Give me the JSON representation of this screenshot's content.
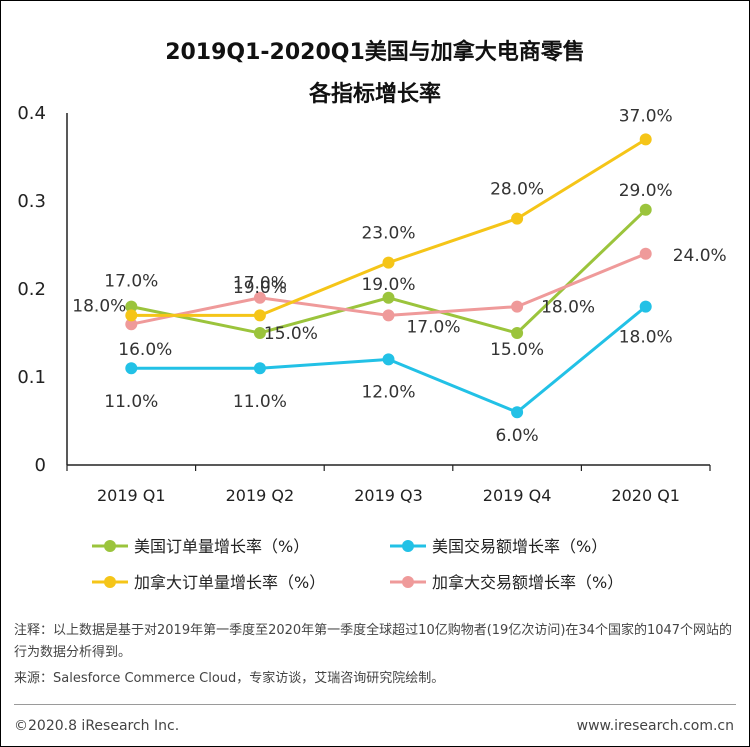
{
  "title": "2019Q1-2020Q1美国与加拿大电商零售",
  "subtitle": "各指标增长率",
  "chart_data": {
    "type": "line",
    "categories": [
      "2019 Q1",
      "2019 Q2",
      "2019 Q3",
      "2019 Q4",
      "2020 Q1"
    ],
    "ylim": [
      0,
      0.4
    ],
    "y_ticks": [
      "0",
      "0.1",
      "0.2",
      "0.3",
      "0.4"
    ],
    "grid": false,
    "legend_position": "bottom",
    "series": [
      {
        "name": "美国订单量增长率（%）",
        "color": "#9bc43c",
        "values": [
          0.18,
          0.15,
          0.19,
          0.15,
          0.29
        ],
        "labels": [
          "18.0%",
          "15.0%",
          "19.0%",
          "15.0%",
          "29.0%"
        ]
      },
      {
        "name": "美国交易额增长率（%）",
        "color": "#22c1e6",
        "values": [
          0.11,
          0.11,
          0.12,
          0.06,
          0.18
        ],
        "labels": [
          "11.0%",
          "11.0%",
          "12.0%",
          "6.0%",
          "18.0%"
        ]
      },
      {
        "name": "加拿大订单量增长率（%）",
        "color": "#f5c518",
        "values": [
          0.17,
          0.17,
          0.23,
          0.28,
          0.37
        ],
        "labels": [
          "17.0%",
          "17.0%",
          "23.0%",
          "28.0%",
          "37.0%"
        ]
      },
      {
        "name": "加拿大交易额增长率（%）",
        "color": "#ef9a9a",
        "values": [
          0.16,
          0.19,
          0.17,
          0.18,
          0.24
        ],
        "labels": [
          "16.0%",
          "19.0%",
          "17.0%",
          "18.0%",
          "24.0%"
        ]
      }
    ]
  },
  "notes": {
    "note": "注释：以上数据是基于对2019年第一季度至2020年第一季度全球超过10亿购物者(19亿次访问)在34个国家的1047个网站的行为数据分析得到。",
    "source": "来源：Salesforce Commerce Cloud，专家访谈，艾瑞咨询研究院绘制。"
  },
  "footer": {
    "copyright": "©2020.8 iResearch Inc.",
    "website": "www.iresearch.com.cn"
  }
}
